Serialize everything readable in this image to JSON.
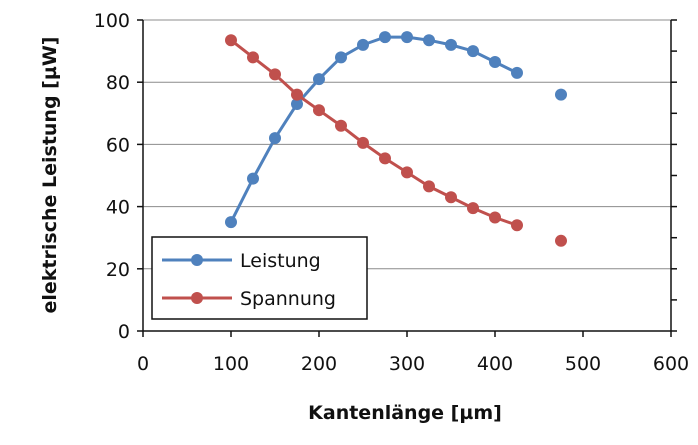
{
  "chart_data": {
    "type": "line",
    "xlabel": "Kantenlänge [µm]",
    "ylabel": "elektrische Leistung [µW]",
    "xlim": [
      0,
      600
    ],
    "ylim": [
      0,
      100
    ],
    "x_ticks": [
      0,
      100,
      200,
      300,
      400,
      500,
      600
    ],
    "y_ticks": [
      0,
      20,
      40,
      60,
      80,
      100
    ],
    "grid": "horizontal",
    "legend_position": "bottom-left",
    "secondary_axis": "right (unlabeled ticks)",
    "series": [
      {
        "name": "Leistung",
        "color": "#4f81bd",
        "line_x": [
          100,
          125,
          150,
          175,
          200,
          225,
          250,
          275,
          300,
          325,
          350,
          375,
          400,
          425
        ],
        "line_y": [
          35,
          49,
          62,
          73,
          81,
          88,
          92,
          94.5,
          94.5,
          93.5,
          92,
          90,
          86.5,
          83
        ],
        "extra_points": [
          [
            475,
            76
          ]
        ]
      },
      {
        "name": "Spannung",
        "color": "#c0504d",
        "line_x": [
          100,
          125,
          150,
          175,
          200,
          225,
          250,
          275,
          300,
          325,
          350,
          375,
          400,
          425
        ],
        "line_y": [
          93.5,
          88,
          82.5,
          76,
          71,
          66,
          60.5,
          55.5,
          51,
          46.5,
          43,
          39.5,
          36.5,
          34
        ],
        "extra_points": [
          [
            475,
            29
          ]
        ]
      }
    ]
  }
}
